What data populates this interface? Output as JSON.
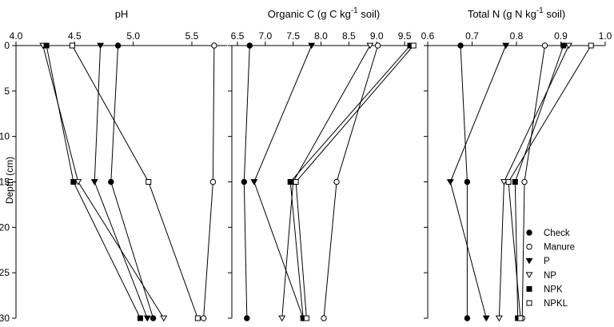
{
  "chart_data": [
    {
      "type": "line",
      "title": "pH",
      "title_super": "",
      "title_suffix": "",
      "xlim": [
        4.0,
        5.8
      ],
      "xticks": [
        4.0,
        4.5,
        5.0,
        5.5
      ],
      "ylim": [
        0,
        30
      ],
      "yticks": [
        0,
        5,
        10,
        15,
        20,
        25,
        30
      ],
      "ylabel": "Depth (cm)",
      "depths": [
        0,
        15,
        30
      ],
      "series": [
        {
          "name": "Check",
          "marker": "filled-circle",
          "values": [
            4.87,
            4.81,
            5.17
          ]
        },
        {
          "name": "Manure",
          "marker": "open-circle",
          "values": [
            5.69,
            5.68,
            5.6
          ]
        },
        {
          "name": "P",
          "marker": "filled-triangle",
          "values": [
            4.72,
            4.67,
            5.12
          ]
        },
        {
          "name": "NP",
          "marker": "open-triangle",
          "values": [
            4.23,
            4.53,
            5.26
          ]
        },
        {
          "name": "NPK",
          "marker": "filled-square",
          "values": [
            4.26,
            4.49,
            5.06
          ]
        },
        {
          "name": "NPKL",
          "marker": "open-square",
          "values": [
            4.48,
            5.13,
            5.55
          ]
        }
      ]
    },
    {
      "type": "line",
      "title": "Organic C (g C kg",
      "title_super": "-1",
      "title_suffix": " soil)",
      "xlim": [
        6.4,
        9.7
      ],
      "xticks": [
        6.5,
        7.0,
        7.5,
        8.0,
        8.5,
        9.0,
        9.5
      ],
      "ylim": [
        0,
        30
      ],
      "depths": [
        0,
        15,
        30
      ],
      "series": [
        {
          "name": "Check",
          "marker": "filled-circle",
          "values": [
            6.72,
            6.62,
            6.67
          ]
        },
        {
          "name": "Manure",
          "marker": "open-circle",
          "values": [
            9.02,
            8.28,
            8.05
          ]
        },
        {
          "name": "P",
          "marker": "filled-triangle",
          "values": [
            7.83,
            6.8,
            7.68
          ]
        },
        {
          "name": "NP",
          "marker": "open-triangle",
          "values": [
            8.88,
            7.5,
            7.3
          ]
        },
        {
          "name": "NPK",
          "marker": "filled-square",
          "values": [
            9.6,
            7.45,
            7.68
          ]
        },
        {
          "name": "NPKL",
          "marker": "open-square",
          "values": [
            9.66,
            7.55,
            7.74
          ]
        }
      ]
    },
    {
      "type": "line",
      "title": "Total N (g N kg",
      "title_super": "-1",
      "title_suffix": " soil)",
      "xlim": [
        0.6,
        1.0
      ],
      "xticks": [
        0.6,
        0.7,
        0.8,
        0.9,
        1.0
      ],
      "ylim": [
        0,
        30
      ],
      "depths": [
        0,
        15,
        30
      ],
      "series": [
        {
          "name": "Check",
          "marker": "filled-circle",
          "values": [
            0.674,
            0.689,
            0.689
          ]
        },
        {
          "name": "Manure",
          "marker": "open-circle",
          "values": [
            0.864,
            0.818,
            0.813
          ]
        },
        {
          "name": "P",
          "marker": "filled-triangle",
          "values": [
            0.776,
            0.651,
            0.732
          ]
        },
        {
          "name": "NP",
          "marker": "open-triangle",
          "values": [
            0.918,
            0.772,
            0.761
          ]
        },
        {
          "name": "NPK",
          "marker": "filled-square",
          "values": [
            0.906,
            0.797,
            0.803
          ]
        },
        {
          "name": "NPKL",
          "marker": "open-square",
          "values": [
            0.968,
            0.782,
            0.809
          ]
        }
      ]
    }
  ],
  "legend": {
    "placement": "bottom-right",
    "entries": [
      {
        "label": "Check",
        "marker": "filled-circle"
      },
      {
        "label": "Manure",
        "marker": "open-circle"
      },
      {
        "label": "P",
        "marker": "filled-triangle"
      },
      {
        "label": "NP",
        "marker": "open-triangle"
      },
      {
        "label": "NPK",
        "marker": "filled-square"
      },
      {
        "label": "NPKL",
        "marker": "open-square"
      }
    ]
  }
}
